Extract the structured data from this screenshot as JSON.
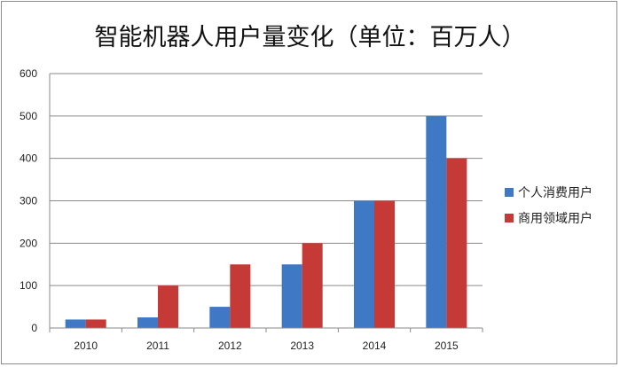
{
  "chart_data": {
    "type": "bar",
    "title": "智能机器人用户量变化（单位：百万人）",
    "categories": [
      "2010",
      "2011",
      "2012",
      "2013",
      "2014",
      "2015"
    ],
    "series": [
      {
        "name": "个人消费用户",
        "values": [
          20,
          25,
          50,
          150,
          300,
          500
        ],
        "color": "#3f78c4"
      },
      {
        "name": "商用领域用户",
        "values": [
          20,
          100,
          150,
          200,
          300,
          400
        ],
        "color": "#c53a36"
      }
    ],
    "xlabel": "",
    "ylabel": "",
    "ylim": [
      0,
      600
    ],
    "yticks": [
      "0",
      "100",
      "200",
      "300",
      "400",
      "500",
      "600"
    ],
    "grid": true,
    "legend_position": "right"
  }
}
